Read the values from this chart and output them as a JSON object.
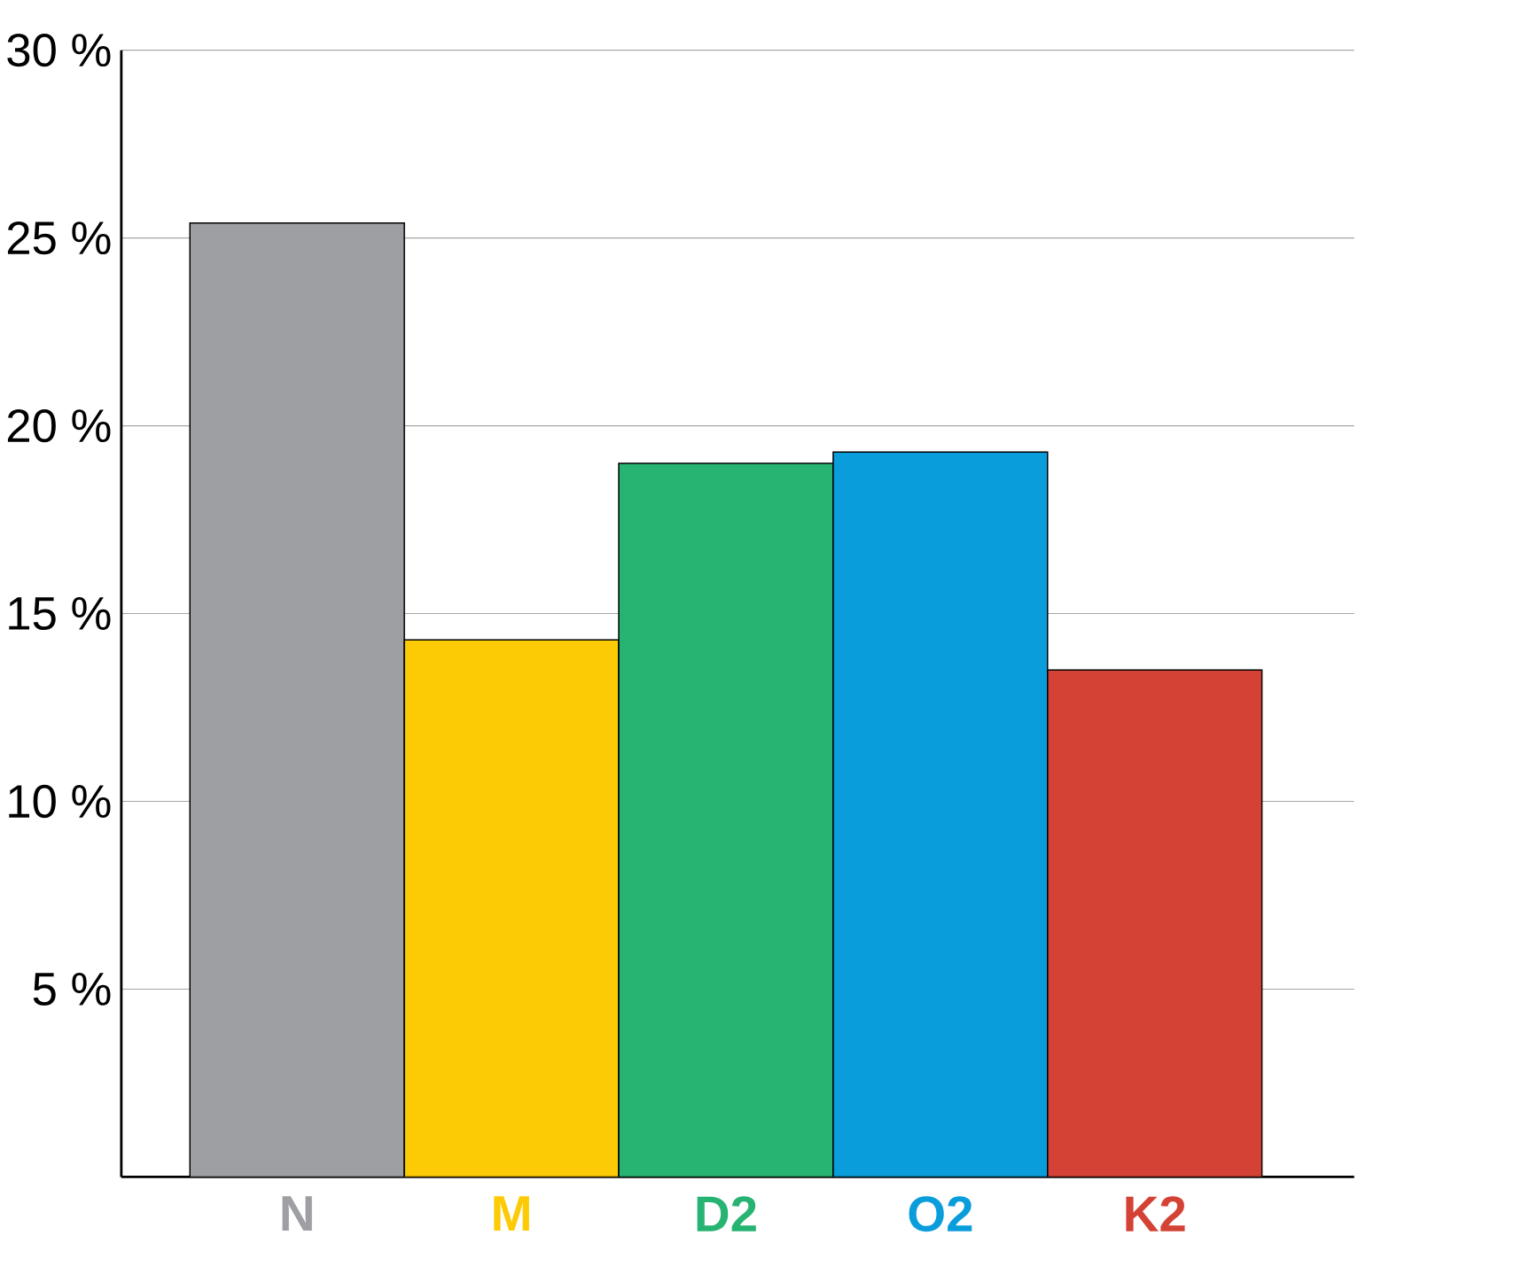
{
  "chart_data": {
    "type": "bar",
    "categories": [
      "N",
      "M",
      "D2",
      "O2",
      "K2"
    ],
    "values": [
      25.4,
      14.3,
      19.0,
      19.3,
      13.5
    ],
    "colors": [
      "#9d9fa2",
      "#fccb06",
      "#27b473",
      "#0a9ddb",
      "#d44235"
    ],
    "ylim": [
      0,
      30
    ],
    "yticks": [
      {
        "value": 5,
        "label": "5 %"
      },
      {
        "value": 10,
        "label": "10 %"
      },
      {
        "value": 15,
        "label": "15 %"
      },
      {
        "value": 20,
        "label": "20 %"
      },
      {
        "value": 25,
        "label": "25 %"
      },
      {
        "value": 30,
        "label": "30 %"
      }
    ],
    "grid": "y"
  }
}
